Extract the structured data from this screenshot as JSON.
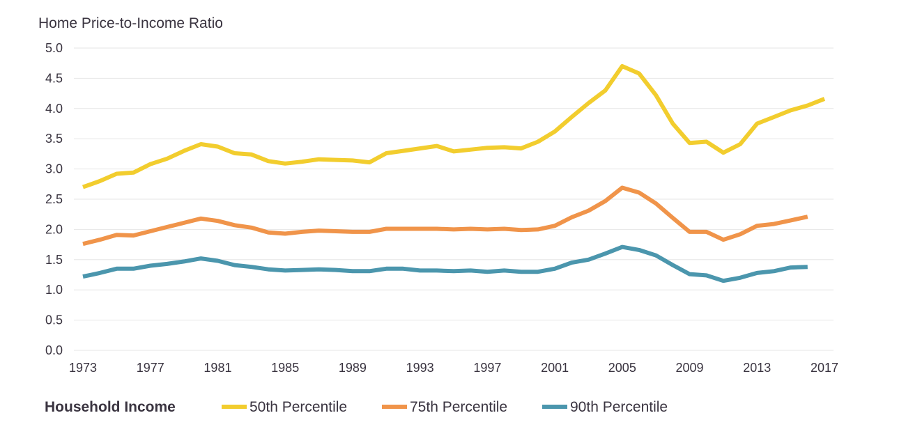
{
  "chart_data": {
    "type": "line",
    "ylabel": "Home Price-to-Income Ratio",
    "ylim": [
      0,
      5
    ],
    "yticks": [
      "0.0",
      "0.5",
      "1.0",
      "1.5",
      "2.0",
      "2.5",
      "3.0",
      "3.5",
      "4.0",
      "4.5",
      "5.0"
    ],
    "xlim": [
      1973,
      2017
    ],
    "xticks": [
      "1973",
      "1977",
      "1981",
      "1985",
      "1989",
      "1993",
      "1997",
      "2001",
      "2005",
      "2009",
      "2013",
      "2017"
    ],
    "grid": true,
    "legend": {
      "title": "Household Income",
      "position": "bottom-left"
    },
    "series": [
      {
        "name": "50th Percentile",
        "color": "#f2cd2e",
        "points": [
          [
            1973,
            2.7
          ],
          [
            1974,
            2.8
          ],
          [
            1975,
            2.92
          ],
          [
            1976,
            2.94
          ],
          [
            1977,
            3.08
          ],
          [
            1978,
            3.17
          ],
          [
            1979,
            3.3
          ],
          [
            1980,
            3.41
          ],
          [
            1981,
            3.37
          ],
          [
            1982,
            3.26
          ],
          [
            1983,
            3.24
          ],
          [
            1984,
            3.13
          ],
          [
            1985,
            3.09
          ],
          [
            1986,
            3.12
          ],
          [
            1987,
            3.16
          ],
          [
            1988,
            3.15
          ],
          [
            1989,
            3.14
          ],
          [
            1990,
            3.11
          ],
          [
            1991,
            3.26
          ],
          [
            1992,
            3.3
          ],
          [
            1993,
            3.34
          ],
          [
            1994,
            3.38
          ],
          [
            1995,
            3.29
          ],
          [
            1996,
            3.32
          ],
          [
            1997,
            3.35
          ],
          [
            1998,
            3.36
          ],
          [
            1999,
            3.34
          ],
          [
            2000,
            3.45
          ],
          [
            2001,
            3.62
          ],
          [
            2002,
            3.86
          ],
          [
            2003,
            4.09
          ],
          [
            2004,
            4.3
          ],
          [
            2005,
            4.7
          ],
          [
            2006,
            4.58
          ],
          [
            2007,
            4.22
          ],
          [
            2008,
            3.75
          ],
          [
            2009,
            3.43
          ],
          [
            2010,
            3.45
          ],
          [
            2011,
            3.27
          ],
          [
            2012,
            3.41
          ],
          [
            2013,
            3.75
          ],
          [
            2014,
            3.86
          ],
          [
            2015,
            3.97
          ],
          [
            2016,
            4.05
          ],
          [
            2017,
            4.16
          ]
        ]
      },
      {
        "name": "75th Percentile",
        "color": "#f0944a",
        "points": [
          [
            1973,
            1.76
          ],
          [
            1974,
            1.83
          ],
          [
            1975,
            1.91
          ],
          [
            1976,
            1.9
          ],
          [
            1977,
            1.97
          ],
          [
            1978,
            2.04
          ],
          [
            1979,
            2.11
          ],
          [
            1980,
            2.18
          ],
          [
            1981,
            2.14
          ],
          [
            1982,
            2.07
          ],
          [
            1983,
            2.03
          ],
          [
            1984,
            1.95
          ],
          [
            1985,
            1.93
          ],
          [
            1986,
            1.96
          ],
          [
            1987,
            1.98
          ],
          [
            1988,
            1.97
          ],
          [
            1989,
            1.96
          ],
          [
            1990,
            1.96
          ],
          [
            1991,
            2.01
          ],
          [
            1992,
            2.01
          ],
          [
            1993,
            2.01
          ],
          [
            1994,
            2.01
          ],
          [
            1995,
            2.0
          ],
          [
            1996,
            2.01
          ],
          [
            1997,
            2.0
          ],
          [
            1998,
            2.01
          ],
          [
            1999,
            1.99
          ],
          [
            2000,
            2.0
          ],
          [
            2001,
            2.06
          ],
          [
            2002,
            2.2
          ],
          [
            2003,
            2.31
          ],
          [
            2004,
            2.47
          ],
          [
            2005,
            2.69
          ],
          [
            2006,
            2.61
          ],
          [
            2007,
            2.43
          ],
          [
            2008,
            2.19
          ],
          [
            2009,
            1.96
          ],
          [
            2010,
            1.96
          ],
          [
            2011,
            1.83
          ],
          [
            2012,
            1.92
          ],
          [
            2013,
            2.06
          ],
          [
            2014,
            2.09
          ],
          [
            2015,
            2.15
          ],
          [
            2016,
            2.21
          ]
        ]
      },
      {
        "name": "90th Percentile",
        "color": "#4b96ad",
        "points": [
          [
            1973,
            1.22
          ],
          [
            1974,
            1.28
          ],
          [
            1975,
            1.35
          ],
          [
            1976,
            1.35
          ],
          [
            1977,
            1.4
          ],
          [
            1978,
            1.43
          ],
          [
            1979,
            1.47
          ],
          [
            1980,
            1.52
          ],
          [
            1981,
            1.48
          ],
          [
            1982,
            1.41
          ],
          [
            1983,
            1.38
          ],
          [
            1984,
            1.34
          ],
          [
            1985,
            1.32
          ],
          [
            1986,
            1.33
          ],
          [
            1987,
            1.34
          ],
          [
            1988,
            1.33
          ],
          [
            1989,
            1.31
          ],
          [
            1990,
            1.31
          ],
          [
            1991,
            1.35
          ],
          [
            1992,
            1.35
          ],
          [
            1993,
            1.32
          ],
          [
            1994,
            1.32
          ],
          [
            1995,
            1.31
          ],
          [
            1996,
            1.32
          ],
          [
            1997,
            1.3
          ],
          [
            1998,
            1.32
          ],
          [
            1999,
            1.3
          ],
          [
            2000,
            1.3
          ],
          [
            2001,
            1.35
          ],
          [
            2002,
            1.45
          ],
          [
            2003,
            1.5
          ],
          [
            2004,
            1.6
          ],
          [
            2005,
            1.71
          ],
          [
            2006,
            1.66
          ],
          [
            2007,
            1.57
          ],
          [
            2008,
            1.41
          ],
          [
            2009,
            1.26
          ],
          [
            2010,
            1.24
          ],
          [
            2011,
            1.15
          ],
          [
            2012,
            1.2
          ],
          [
            2013,
            1.28
          ],
          [
            2014,
            1.31
          ],
          [
            2015,
            1.37
          ],
          [
            2016,
            1.38
          ]
        ]
      }
    ]
  }
}
